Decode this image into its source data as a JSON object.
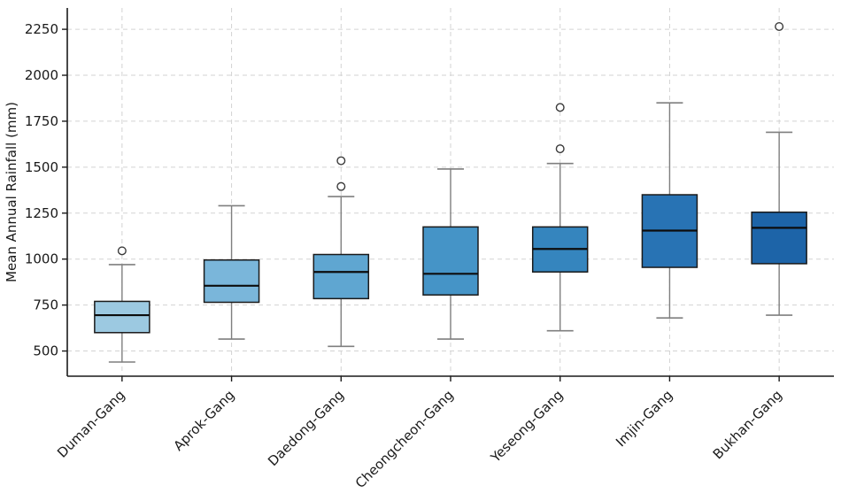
{
  "figure": {
    "background": "#ffffff"
  },
  "chart_data": {
    "type": "boxplot",
    "title": "",
    "xlabel": "",
    "ylabel": "Mean Annual Rainfall (mm)",
    "categories": [
      "Duman-Gang",
      "Aprok-Gang",
      "Daedong-Gang",
      "Cheongcheon-Gang",
      "Yeseong-Gang",
      "Imjin-Gang",
      "Bukhan-Gang"
    ],
    "series": [
      {
        "name": "Duman-Gang",
        "whisker_low": 440,
        "q1": 600,
        "median": 695,
        "q3": 770,
        "whisker_high": 970,
        "outliers": [
          1045
        ],
        "color": "#9CC9E1"
      },
      {
        "name": "Aprok-Gang",
        "whisker_low": 565,
        "q1": 765,
        "median": 855,
        "q3": 995,
        "whisker_high": 1290,
        "outliers": [],
        "color": "#7AB6DA"
      },
      {
        "name": "Daedong-Gang",
        "whisker_low": 525,
        "q1": 785,
        "median": 930,
        "q3": 1025,
        "whisker_high": 1340,
        "outliers": [
          1395,
          1535
        ],
        "color": "#5FA6D1"
      },
      {
        "name": "Cheongcheon-Gang",
        "whisker_low": 565,
        "q1": 805,
        "median": 920,
        "q3": 1175,
        "whisker_high": 1490,
        "outliers": [],
        "color": "#4594C7"
      },
      {
        "name": "Yeseong-Gang",
        "whisker_low": 610,
        "q1": 930,
        "median": 1055,
        "q3": 1175,
        "whisker_high": 1520,
        "outliers": [
          1600,
          1825
        ],
        "color": "#3585BE"
      },
      {
        "name": "Imjin-Gang",
        "whisker_low": 680,
        "q1": 955,
        "median": 1155,
        "q3": 1350,
        "whisker_high": 1850,
        "outliers": [],
        "color": "#2873B4"
      },
      {
        "name": "Bukhan-Gang",
        "whisker_low": 695,
        "q1": 975,
        "median": 1170,
        "q3": 1255,
        "whisker_high": 1690,
        "outliers": [
          2265
        ],
        "color": "#1D64A8"
      }
    ],
    "yticks": [
      500,
      750,
      1000,
      1250,
      1500,
      1750,
      2000,
      2250
    ],
    "ytick_labels": [
      "500",
      "750",
      "1000",
      "1250",
      "1500",
      "1750",
      "2000",
      "2250"
    ],
    "ylim": [
      363,
      2366
    ],
    "grid": true,
    "grid_style": "dashed",
    "legend": "none",
    "style": {
      "grid_color": "#d3d3d3",
      "spine_color": "#1a1a1a",
      "tick_label_color": "#1a1a1a",
      "whisker_color": "#7f7f7f",
      "box_edge_color": "#1a1a1a",
      "median_color": "#0d0d0d",
      "outlier_edge_color": "#3a3a3a",
      "outlier_fill_color": "#ffffff"
    }
  }
}
